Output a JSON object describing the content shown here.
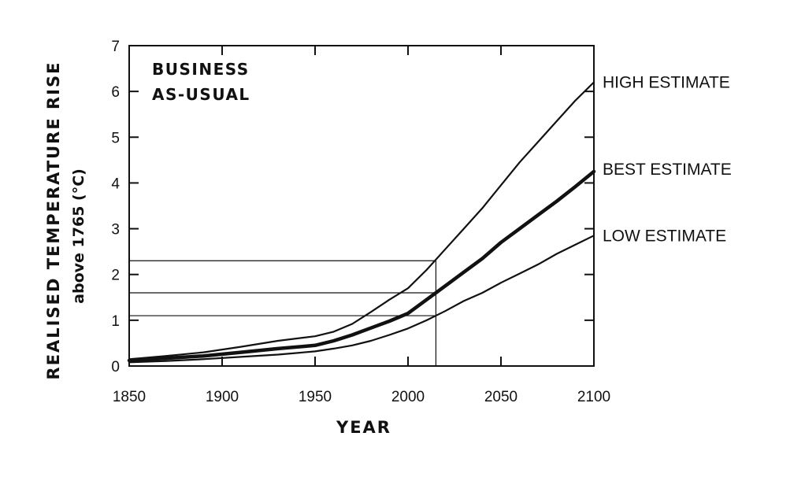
{
  "chart_data": {
    "type": "line",
    "title": "",
    "xlabel": "YEAR",
    "ylabel": "REALISED TEMPERATURE RISE",
    "ylabel_sub": "above 1765 (°C)",
    "annotation_line1": "BUSINESS",
    "annotation_line2": "AS-USUAL",
    "xlim": [
      1850,
      2100
    ],
    "ylim": [
      0,
      7
    ],
    "xticks": [
      "1850",
      "1900",
      "1950",
      "2000",
      "2050",
      "2100"
    ],
    "yticks": [
      "0",
      "1",
      "2",
      "3",
      "4",
      "5",
      "6",
      "7"
    ],
    "grid": false,
    "legend": "right",
    "series": [
      {
        "name": "HIGH ESTIMATE",
        "x": [
          1850,
          1870,
          1890,
          1910,
          1930,
          1950,
          1960,
          1970,
          1980,
          1990,
          2000,
          2010,
          2020,
          2030,
          2040,
          2050,
          2060,
          2070,
          2080,
          2090,
          2100
        ],
        "y": [
          0.15,
          0.22,
          0.3,
          0.42,
          0.55,
          0.65,
          0.75,
          0.92,
          1.18,
          1.45,
          1.7,
          2.1,
          2.55,
          3.0,
          3.45,
          3.95,
          4.45,
          4.9,
          5.35,
          5.8,
          6.2
        ]
      },
      {
        "name": "BEST ESTIMATE",
        "x": [
          1850,
          1870,
          1890,
          1910,
          1930,
          1950,
          1960,
          1970,
          1980,
          1990,
          2000,
          2010,
          2020,
          2030,
          2040,
          2050,
          2060,
          2070,
          2080,
          2090,
          2100
        ],
        "y": [
          0.12,
          0.17,
          0.22,
          0.3,
          0.38,
          0.45,
          0.55,
          0.68,
          0.83,
          0.98,
          1.15,
          1.45,
          1.75,
          2.05,
          2.35,
          2.7,
          3.0,
          3.3,
          3.6,
          3.92,
          4.25
        ]
      },
      {
        "name": "LOW ESTIMATE",
        "x": [
          1850,
          1870,
          1890,
          1910,
          1930,
          1950,
          1960,
          1970,
          1980,
          1990,
          2000,
          2010,
          2020,
          2030,
          2040,
          2050,
          2060,
          2070,
          2080,
          2090,
          2100
        ],
        "y": [
          0.08,
          0.11,
          0.15,
          0.2,
          0.25,
          0.32,
          0.38,
          0.45,
          0.55,
          0.68,
          0.82,
          1.0,
          1.2,
          1.42,
          1.6,
          1.82,
          2.02,
          2.22,
          2.45,
          2.65,
          2.85
        ]
      }
    ],
    "reference_lines": {
      "vertical_x": 2015,
      "horizontal_y": [
        2.3,
        1.6,
        1.1
      ]
    }
  }
}
